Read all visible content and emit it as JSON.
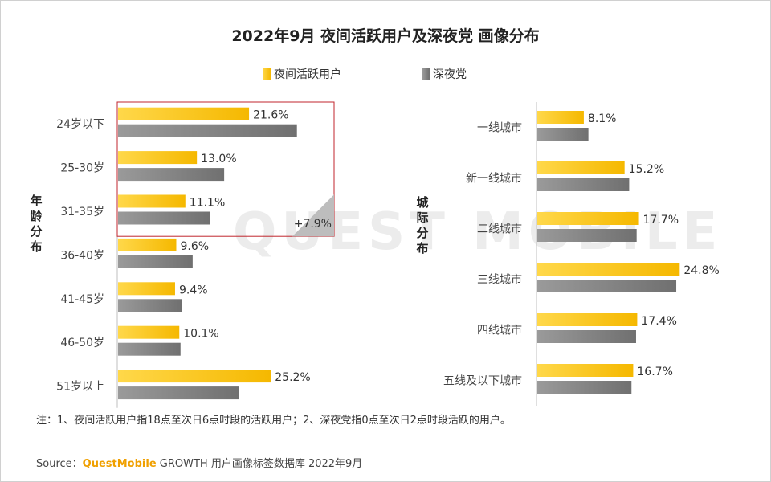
{
  "title": "2022年9月 夜间活跃用户及深夜党 画像分布",
  "legend": {
    "a": "夜间活跃用户",
    "b": "深夜党"
  },
  "colors": {
    "gold": "#f5b800",
    "gray": "#7f7f7f",
    "highlight": "#c0262d"
  },
  "watermark": "QUEST MOBILE",
  "note": "注：1、夜间活跃用户指18点至次日6点时段的活跃用户；2、深夜党指0点至次日2点时段活跃的用户。",
  "source": {
    "prefix": "Source：",
    "brand": "QuestMobile",
    "suffix": " GROWTH 用户画像标签数据库 2022年9月"
  },
  "chart_data": [
    {
      "type": "bar",
      "orientation": "horizontal",
      "group_label": [
        "年",
        "龄",
        "分",
        "布"
      ],
      "categories": [
        "24岁以下",
        "25-30岁",
        "31-35岁",
        "36-40岁",
        "41-45岁",
        "46-50岁",
        "51岁以上"
      ],
      "series": [
        {
          "name": "夜间活跃用户",
          "values": [
            21.6,
            13.0,
            11.1,
            9.6,
            9.4,
            10.1,
            25.2
          ],
          "labels": [
            "21.6%",
            "13.0%",
            "11.1%",
            "9.6%",
            "9.4%",
            "10.1%",
            "25.2%"
          ]
        },
        {
          "name": "深夜党",
          "values": [
            29.5,
            17.5,
            15.2,
            12.3,
            10.5,
            10.3,
            20.0
          ]
        }
      ],
      "annotation": {
        "text": "+7.9%",
        "categories_highlighted": [
          "24岁以下",
          "25-30岁",
          "31-35岁"
        ]
      },
      "xlim": [
        0,
        35
      ]
    },
    {
      "type": "bar",
      "orientation": "horizontal",
      "group_label": [
        "城",
        "际",
        "分",
        "布"
      ],
      "categories": [
        "一线城市",
        "新一线城市",
        "二线城市",
        "三线城市",
        "四线城市",
        "五线及以下城市"
      ],
      "series": [
        {
          "name": "夜间活跃用户",
          "values": [
            8.1,
            15.2,
            17.7,
            24.8,
            17.4,
            16.7
          ],
          "labels": [
            "8.1%",
            "15.2%",
            "17.7%",
            "24.8%",
            "17.4%",
            "16.7%"
          ]
        },
        {
          "name": "深夜党",
          "values": [
            8.9,
            16.0,
            17.3,
            24.2,
            17.2,
            16.4
          ]
        }
      ],
      "xlim": [
        0,
        35
      ]
    }
  ]
}
